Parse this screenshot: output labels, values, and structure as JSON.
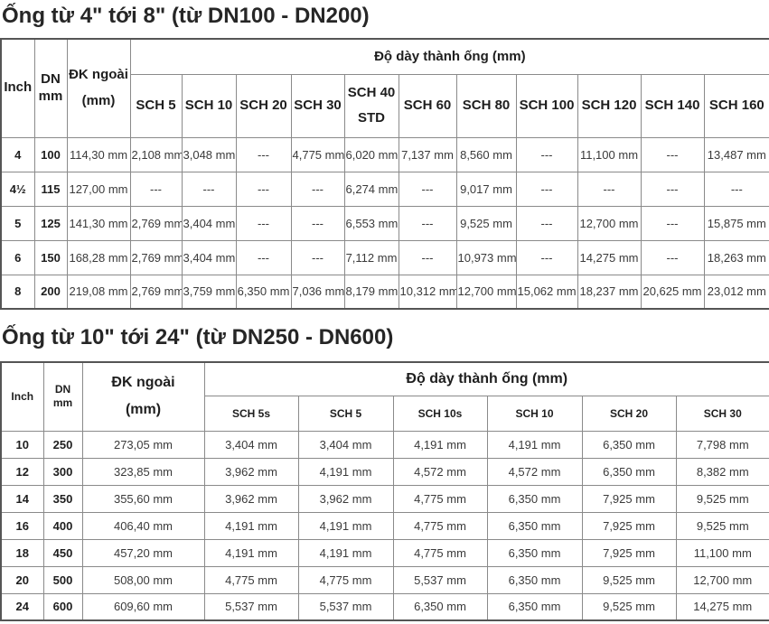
{
  "colors": {
    "background": "#ffffff",
    "text": "#222222",
    "data_text": "#3a3a3a",
    "border_inner": "#8a8a8a",
    "border_outer": "#555555"
  },
  "tables": [
    {
      "title": "Ống từ 4\" tới 8\" (từ DN100 - DN200)",
      "header": {
        "fixed_cols": [
          [
            "Inch"
          ],
          [
            "DN",
            "mm"
          ],
          [
            "ĐK ngoài",
            "(mm)"
          ]
        ],
        "span_label": "Độ dày thành ống (mm)",
        "sch_cols": [
          "SCH 5",
          "SCH 10",
          "SCH 20",
          "SCH 30",
          "SCH 40\nSTD",
          "SCH 60",
          "SCH 80",
          "SCH 100",
          "SCH 120",
          "SCH 140",
          "SCH 160"
        ]
      },
      "rows": [
        {
          "inch": "4",
          "dn": "100",
          "od": "114,30 mm",
          "values": [
            "2,108 mm",
            "3,048 mm",
            "---",
            "4,775 mm",
            "6,020 mm",
            "7,137 mm",
            "8,560 mm",
            "---",
            "11,100 mm",
            "---",
            "13,487 mm"
          ]
        },
        {
          "inch": "4½",
          "dn": "115",
          "od": "127,00 mm",
          "values": [
            "---",
            "---",
            "---",
            "---",
            "6,274 mm",
            "---",
            "9,017 mm",
            "---",
            "---",
            "---",
            "---"
          ]
        },
        {
          "inch": "5",
          "dn": "125",
          "od": "141,30 mm",
          "values": [
            "2,769 mm",
            "3,404 mm",
            "---",
            "---",
            "6,553 mm",
            "---",
            "9,525 mm",
            "---",
            "12,700 mm",
            "---",
            "15,875 mm"
          ]
        },
        {
          "inch": "6",
          "dn": "150",
          "od": "168,28 mm",
          "values": [
            "2,769 mm",
            "3,404 mm",
            "---",
            "---",
            "7,112 mm",
            "---",
            "10,973 mm",
            "---",
            "14,275 mm",
            "---",
            "18,263 mm"
          ]
        },
        {
          "inch": "8",
          "dn": "200",
          "od": "219,08 mm",
          "values": [
            "2,769 mm",
            "3,759 mm",
            "6,350 mm",
            "7,036 mm",
            "8,179 mm",
            "10,312 mm",
            "12,700 mm",
            "15,062 mm",
            "18,237 mm",
            "20,625 mm",
            "23,012 mm"
          ]
        }
      ]
    },
    {
      "title": "Ống từ 10\" tới 24\" (từ DN250 - DN600)",
      "header": {
        "fixed_cols": [
          [
            "Inch"
          ],
          [
            "DN",
            "mm"
          ],
          [
            "ĐK ngoài",
            "(mm)"
          ]
        ],
        "span_label": "Độ dày thành ống (mm)",
        "sch_cols": [
          "SCH 5s",
          "SCH 5",
          "SCH 10s",
          "SCH 10",
          "SCH 20",
          "SCH 30"
        ]
      },
      "rows": [
        {
          "inch": "10",
          "dn": "250",
          "od": "273,05 mm",
          "values": [
            "3,404 mm",
            "3,404 mm",
            "4,191 mm",
            "4,191 mm",
            "6,350 mm",
            "7,798 mm"
          ]
        },
        {
          "inch": "12",
          "dn": "300",
          "od": "323,85 mm",
          "values": [
            "3,962 mm",
            "4,191 mm",
            "4,572 mm",
            "4,572 mm",
            "6,350 mm",
            "8,382 mm"
          ]
        },
        {
          "inch": "14",
          "dn": "350",
          "od": "355,60 mm",
          "values": [
            "3,962 mm",
            "3,962 mm",
            "4,775 mm",
            "6,350 mm",
            "7,925 mm",
            "9,525 mm"
          ]
        },
        {
          "inch": "16",
          "dn": "400",
          "od": "406,40 mm",
          "values": [
            "4,191 mm",
            "4,191 mm",
            "4,775 mm",
            "6,350 mm",
            "7,925 mm",
            "9,525 mm"
          ]
        },
        {
          "inch": "18",
          "dn": "450",
          "od": "457,20 mm",
          "values": [
            "4,191 mm",
            "4,191 mm",
            "4,775 mm",
            "6,350 mm",
            "7,925 mm",
            "11,100 mm"
          ]
        },
        {
          "inch": "20",
          "dn": "500",
          "od": "508,00 mm",
          "values": [
            "4,775 mm",
            "4,775 mm",
            "5,537 mm",
            "6,350 mm",
            "9,525 mm",
            "12,700 mm"
          ]
        },
        {
          "inch": "24",
          "dn": "600",
          "od": "609,60 mm",
          "values": [
            "5,537 mm",
            "5,537 mm",
            "6,350 mm",
            "6,350 mm",
            "9,525 mm",
            "14,275 mm"
          ]
        }
      ]
    }
  ]
}
